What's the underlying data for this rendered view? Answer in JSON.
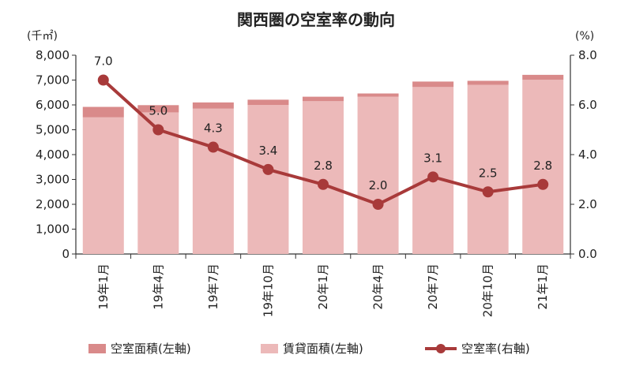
{
  "chart_data": {
    "type": "bar",
    "title": "関西圏の空室率の動向",
    "left_unit": "(千㎡)",
    "right_unit": "(%)",
    "categories": [
      "19年1月",
      "19年4月",
      "19年7月",
      "19年10月",
      "20年1月",
      "20年4月",
      "20年7月",
      "20年10月",
      "21年1月"
    ],
    "left_ticks": [
      "0",
      "1,000",
      "2,000",
      "3,000",
      "4,000",
      "5,000",
      "6,000",
      "7,000",
      "8,000"
    ],
    "right_ticks": [
      "0.0",
      "2.0",
      "4.0",
      "6.0",
      "8.0"
    ],
    "ylim_left": [
      0,
      8000
    ],
    "ylim_right": [
      0,
      8
    ],
    "series": [
      {
        "name": "空室面積(左軸)",
        "kind": "stacked-bar",
        "color": "#d98a8a",
        "values": [
          420,
          290,
          250,
          210,
          180,
          130,
          220,
          160,
          200
        ]
      },
      {
        "name": "賃貸面積(左軸)",
        "kind": "stacked-bar",
        "color": "#ecb9b9",
        "values": [
          5500,
          5700,
          5850,
          6000,
          6150,
          6330,
          6720,
          6810,
          7010
        ]
      },
      {
        "name": "空室率(右軸)",
        "kind": "line",
        "axis": "right",
        "color": "#a83a3a",
        "values": [
          7.0,
          5.0,
          4.3,
          3.4,
          2.8,
          2.0,
          3.1,
          2.5,
          2.8
        ],
        "labels": [
          "7.0",
          "5.0",
          "4.3",
          "3.4",
          "2.8",
          "2.0",
          "3.1",
          "2.5",
          "2.8"
        ]
      }
    ],
    "legend_position": "bottom",
    "grid": false
  }
}
